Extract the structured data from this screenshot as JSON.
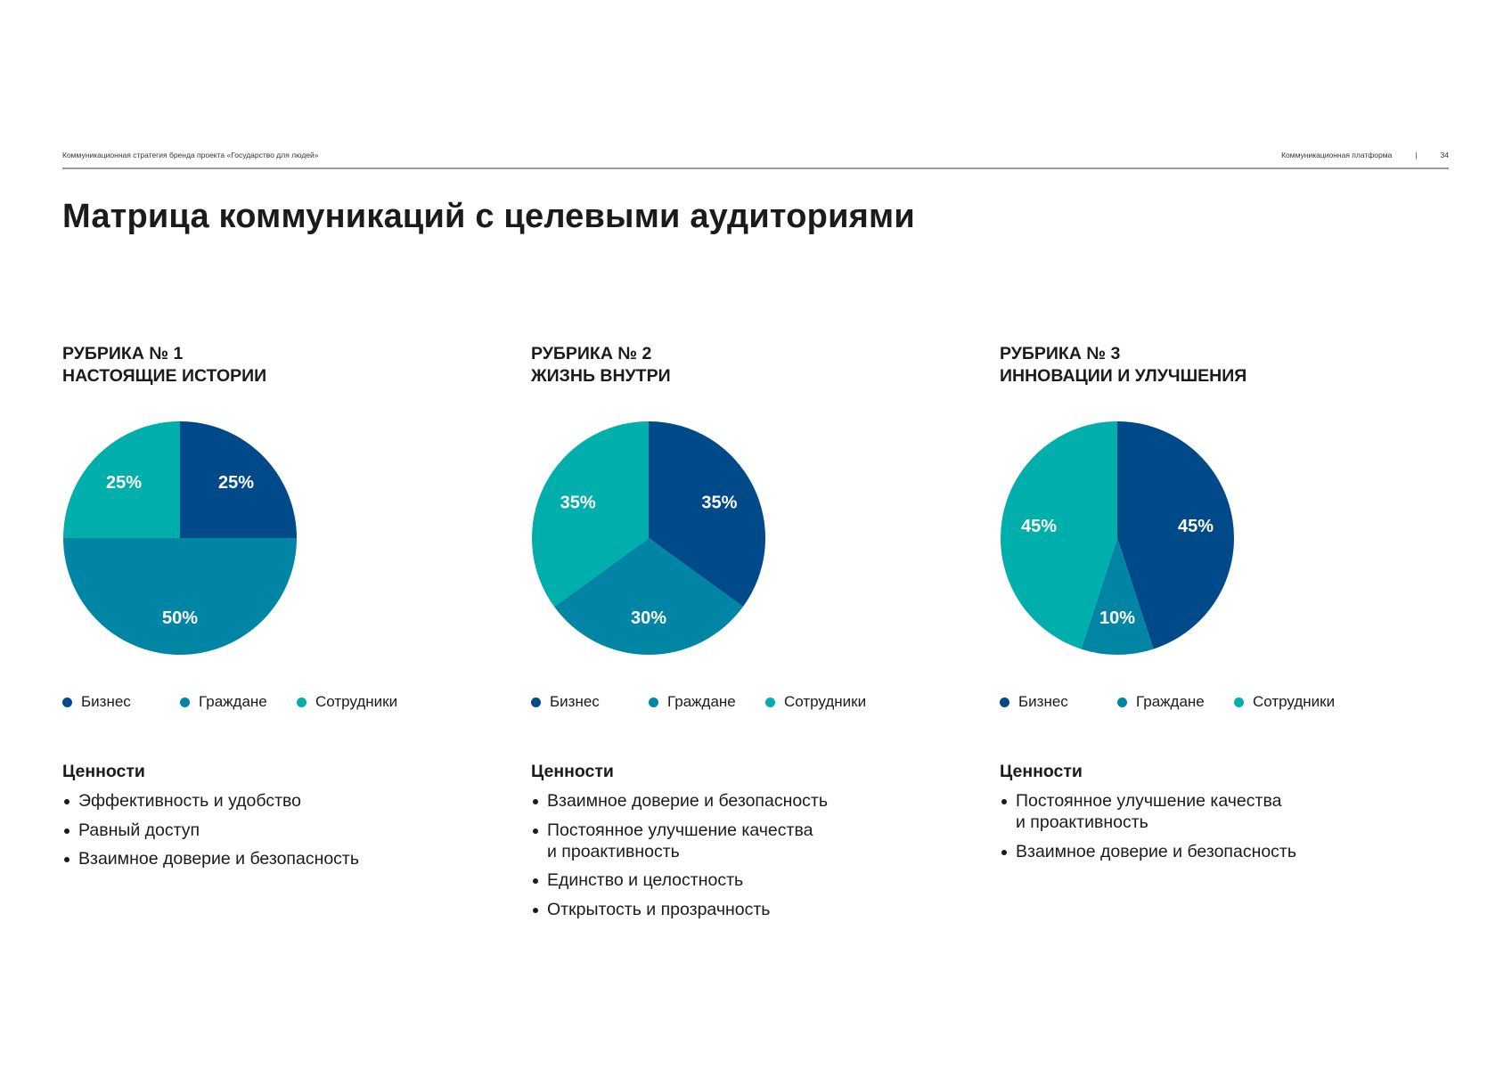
{
  "header": {
    "left": "Коммуникационная стратегия бренда проекта «Государство для людей»",
    "section": "Коммуникационная платформа",
    "separator": "|",
    "page": "34"
  },
  "title": "Матрица коммуникаций с целевыми аудиториями",
  "colors": {
    "business": "#004a8a",
    "citizens": "#0085a5",
    "employees": "#00aeab"
  },
  "legend": [
    "Бизнес",
    "Граждане",
    "Сотрудники"
  ],
  "values_heading": "Ценности",
  "chart_data": [
    {
      "type": "pie",
      "title": "РУБРИКА № 1\nНАСТОЯЩИЕ ИСТОРИИ",
      "title_line1": "РУБРИКА № 1",
      "title_line2": "НАСТОЯЩИЕ ИСТОРИИ",
      "categories": [
        "Бизнес",
        "Граждане",
        "Сотрудники"
      ],
      "values": [
        25,
        50,
        25
      ],
      "labels": [
        "25%",
        "50%",
        "25%"
      ],
      "values_list": [
        "Эффективность и удобство",
        "Равный доступ",
        "Взаимное доверие и безопасность"
      ]
    },
    {
      "type": "pie",
      "title_line1": "РУБРИКА № 2",
      "title_line2": "ЖИЗНЬ ВНУТРИ",
      "categories": [
        "Бизнес",
        "Граждане",
        "Сотрудники"
      ],
      "values": [
        35,
        30,
        35
      ],
      "labels": [
        "35%",
        "30%",
        "35%"
      ],
      "values_list": [
        "Взаимное доверие и безопасность",
        "Постоянное улучшение качества\nи проактивность",
        "Единство и целостность",
        "Открытость и прозрачность"
      ]
    },
    {
      "type": "pie",
      "title_line1": "РУБРИКА № 3",
      "title_line2": "ИННОВАЦИИ И УЛУЧШЕНИЯ",
      "categories": [
        "Бизнес",
        "Граждане",
        "Сотрудники"
      ],
      "values": [
        45,
        10,
        45
      ],
      "labels": [
        "45%",
        "10%",
        "45%"
      ],
      "values_list": [
        "Постоянное улучшение качества\nи проактивность",
        "Взаимное доверие и безопасность"
      ]
    }
  ]
}
